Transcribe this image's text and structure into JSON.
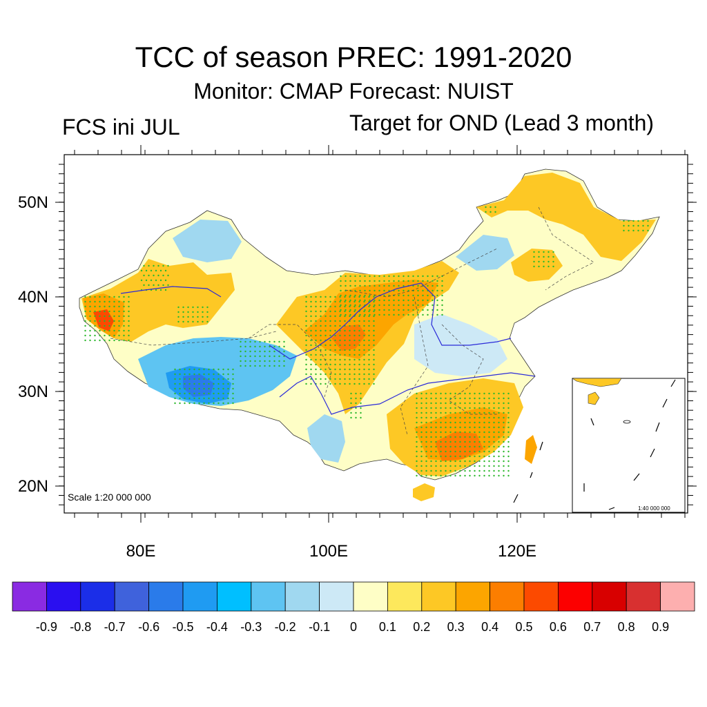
{
  "title": "TCC of season PREC: 1991-2020",
  "subtitle": "Monitor: CMAP   Forecast: NUIST",
  "left_string": "FCS ini JUL",
  "right_string": "Target for OND (Lead 3 month)",
  "scale_main": "Scale 1:20 000 000",
  "scale_inset": "1:40 000 000",
  "axes": {
    "lat_labels": [
      "50N",
      "40N",
      "30N",
      "20N"
    ],
    "lon_labels": [
      "80E",
      "100E",
      "120E"
    ]
  },
  "colorbar": {
    "colors": [
      "#8a2be2",
      "#2a0ff0",
      "#1b2ee8",
      "#3f62dc",
      "#2a7bea",
      "#1f9bf2",
      "#00bfff",
      "#5ec4f2",
      "#a0d8f0",
      "#cde9f6",
      "#fefec6",
      "#fde85c",
      "#fdc825",
      "#fca500",
      "#fc7e00",
      "#fc4a00",
      "#fc0000",
      "#d80000",
      "#d83030",
      "#fdafaf"
    ],
    "labels": [
      "-0.9",
      "-0.8",
      "-0.7",
      "-0.6",
      "-0.5",
      "-0.4",
      "-0.3",
      "-0.2",
      "-0.1",
      "0",
      "0.1",
      "0.2",
      "0.3",
      "0.4",
      "0.5",
      "0.6",
      "0.7",
      "0.8",
      "0.9"
    ]
  },
  "stipple_color": "#2db82d"
}
